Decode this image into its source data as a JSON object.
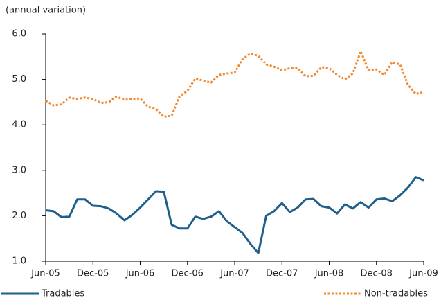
{
  "chart_data": {
    "type": "line",
    "y_label": "(annual variation)",
    "categories": [
      "Jun-05",
      null,
      null,
      null,
      null,
      null,
      "Dec-05",
      null,
      null,
      null,
      null,
      null,
      "Jun-06",
      null,
      null,
      null,
      null,
      null,
      "Dec-06",
      null,
      null,
      null,
      null,
      null,
      "Jun-07",
      null,
      null,
      null,
      null,
      null,
      "Dec-07",
      null,
      null,
      null,
      null,
      null,
      "Jun-08",
      null,
      null,
      null,
      null,
      null,
      "Dec-08",
      null,
      null,
      null,
      null,
      null,
      "Jun-09"
    ],
    "series": [
      {
        "name": "Tradables",
        "color": "#1f5f8b",
        "dash": "solid",
        "values": [
          2.12,
          2.1,
          1.97,
          1.98,
          2.36,
          2.36,
          2.22,
          2.21,
          2.16,
          2.05,
          1.9,
          2.02,
          2.18,
          2.36,
          2.54,
          2.53,
          1.8,
          1.72,
          1.72,
          1.98,
          1.93,
          1.98,
          2.1,
          1.88,
          1.75,
          1.62,
          1.38,
          1.18,
          2.0,
          2.1,
          2.28,
          2.08,
          2.18,
          2.36,
          2.37,
          2.21,
          2.18,
          2.05,
          2.25,
          2.16,
          2.3,
          2.18,
          2.36,
          2.38,
          2.32,
          2.45,
          2.62,
          2.85,
          2.78
        ]
      },
      {
        "name": "Non-tradables",
        "color": "#f08a30",
        "dash": "dotted",
        "values": [
          4.53,
          4.43,
          4.45,
          4.6,
          4.57,
          4.6,
          4.57,
          4.48,
          4.5,
          4.62,
          4.55,
          4.57,
          4.58,
          4.4,
          4.35,
          4.18,
          4.2,
          4.63,
          4.75,
          5.02,
          4.97,
          4.93,
          5.1,
          5.13,
          5.15,
          5.45,
          5.57,
          5.52,
          5.33,
          5.28,
          5.2,
          5.25,
          5.25,
          5.07,
          5.08,
          5.27,
          5.25,
          5.1,
          5.0,
          5.13,
          5.62,
          5.2,
          5.22,
          5.1,
          5.38,
          5.33,
          4.88,
          4.68,
          4.72
        ]
      }
    ],
    "ylim": [
      1,
      6
    ],
    "yticks": [
      {
        "value": 1,
        "label": "1.0"
      },
      {
        "value": 2,
        "label": "2.0"
      },
      {
        "value": 3,
        "label": "3.0"
      },
      {
        "value": 4,
        "label": "4.0"
      },
      {
        "value": 5,
        "label": "5.0"
      },
      {
        "value": 6,
        "label": "6.0"
      }
    ],
    "grid": false
  }
}
